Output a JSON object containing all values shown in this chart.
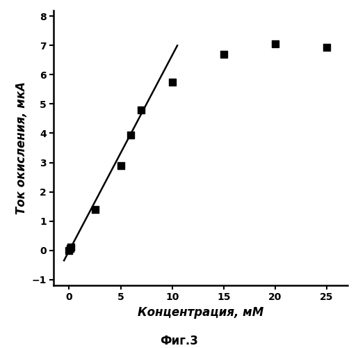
{
  "scatter_x": [
    0.0,
    0.1,
    0.2,
    2.5,
    5.0,
    6.0,
    7.0,
    10.0,
    15.0,
    20.0,
    25.0
  ],
  "scatter_y": [
    0.0,
    0.05,
    0.1,
    1.4,
    2.9,
    3.95,
    4.8,
    5.75,
    6.7,
    7.05,
    6.95
  ],
  "line_x": [
    -0.5,
    10.5
  ],
  "line_y": [
    -0.35,
    7.0
  ],
  "xlabel": "Концентрация, мМ",
  "ylabel": "Ток окисления, мкА",
  "caption": "Фиг.3",
  "xlim": [
    -1.5,
    27
  ],
  "ylim": [
    -1.2,
    8.2
  ],
  "xticks": [
    0,
    5,
    10,
    15,
    20,
    25
  ],
  "yticks": [
    -1,
    0,
    1,
    2,
    3,
    4,
    5,
    6,
    7,
    8
  ],
  "marker_color": "black",
  "line_color": "black",
  "marker_size": 55,
  "line_width": 1.8,
  "label_fontsize": 12,
  "tick_fontsize": 10,
  "caption_fontsize": 12
}
